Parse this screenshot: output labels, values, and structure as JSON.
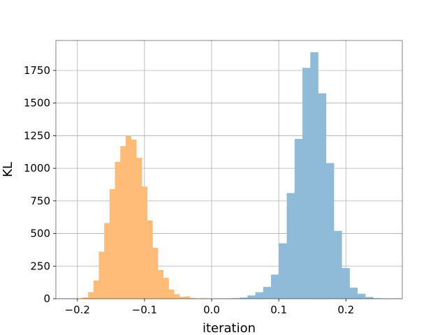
{
  "chart_data": {
    "type": "bar",
    "title": "",
    "xlabel": "iteration",
    "ylabel": "KL",
    "xlim": [
      -0.232,
      0.284
    ],
    "ylim": [
      0,
      1980
    ],
    "grid": true,
    "x_ticks": [
      -0.2,
      -0.1,
      0.0,
      0.1,
      0.2
    ],
    "x_tick_labels": [
      "−0.2",
      "−0.1",
      "0.0",
      "0.1",
      "0.2"
    ],
    "y_ticks": [
      0,
      250,
      500,
      750,
      1000,
      1250,
      1500,
      1750
    ],
    "y_tick_labels": [
      "0",
      "250",
      "500",
      "750",
      "1000",
      "1250",
      "1500",
      "1750"
    ],
    "series": [
      {
        "color": "#ffbb78",
        "bin_edges": [
          -0.2,
          -0.192,
          -0.184,
          -0.176,
          -0.168,
          -0.16,
          -0.152,
          -0.144,
          -0.136,
          -0.128,
          -0.12,
          -0.112,
          -0.104,
          -0.096,
          -0.088,
          -0.08,
          -0.072,
          -0.064,
          -0.056,
          -0.048,
          -0.04,
          -0.032,
          -0.024,
          -0.016,
          -0.008,
          0.0
        ],
        "counts": [
          2,
          10,
          50,
          140,
          360,
          580,
          840,
          1050,
          1170,
          1250,
          1220,
          1080,
          860,
          600,
          390,
          220,
          160,
          70,
          35,
          15,
          18,
          6,
          2,
          4,
          1
        ]
      },
      {
        "color": "#8fbbd9",
        "bin_edges": [
          0.03,
          0.0417,
          0.0534,
          0.0651,
          0.0768,
          0.0885,
          0.1002,
          0.1119,
          0.1236,
          0.1353,
          0.147,
          0.1587,
          0.1704,
          0.1821,
          0.1938,
          0.2055,
          0.2172,
          0.2289,
          0.2406,
          0.2523,
          0.264
        ],
        "counts": [
          4,
          9,
          25,
          50,
          90,
          185,
          425,
          810,
          1225,
          1770,
          1890,
          1575,
          1040,
          520,
          235,
          85,
          38,
          13,
          4,
          1
        ]
      }
    ]
  }
}
